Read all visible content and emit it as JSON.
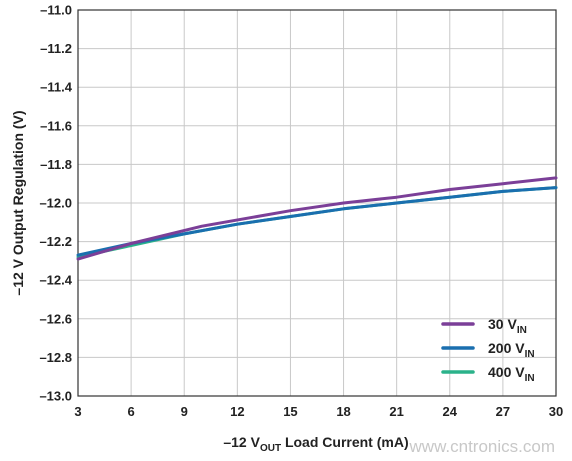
{
  "chart_data": {
    "type": "line",
    "title": "",
    "xlabel": "–12 VOUT Load Current (mA)",
    "xlabel_parts": {
      "main": "–12 V",
      "sub": "OUT",
      "rest": " Load Current (mA)"
    },
    "ylabel": "–12 V Output Regulation (V)",
    "xlim": [
      3,
      30
    ],
    "ylim": [
      -13.0,
      -11.0
    ],
    "x_ticks": [
      3,
      6,
      9,
      12,
      15,
      18,
      21,
      24,
      27,
      30
    ],
    "y_ticks": [
      -11.0,
      -11.2,
      -11.4,
      -11.6,
      -11.8,
      -12.0,
      -12.2,
      -12.4,
      -12.6,
      -12.8,
      -13.0
    ],
    "y_tick_labels": [
      "–11.0",
      "–11.2",
      "–11.4",
      "–11.6",
      "–11.8",
      "–12.0",
      "–12.2",
      "–12.4",
      "–12.6",
      "–12.8",
      "–13.0"
    ],
    "x_tick_labels": [
      "3",
      "6",
      "9",
      "12",
      "15",
      "18",
      "21",
      "24",
      "27",
      "30"
    ],
    "grid": true,
    "legend_position": "bottom-right",
    "series": [
      {
        "name": "30 VIN",
        "label_main": "30 V",
        "label_sub": "IN",
        "color": "#7b3f98",
        "x": [
          3,
          6,
          10,
          15,
          18,
          21,
          24,
          27,
          30
        ],
        "y": [
          -12.29,
          -12.21,
          -12.12,
          -12.04,
          -12.0,
          -11.97,
          -11.93,
          -11.9,
          -11.87
        ]
      },
      {
        "name": "200 VIN",
        "label_main": "200 V",
        "label_sub": "IN",
        "color": "#1a6faf",
        "x": [
          3,
          6,
          9,
          12,
          15,
          18,
          21,
          24,
          27,
          30
        ],
        "y": [
          -12.27,
          -12.21,
          -12.16,
          -12.11,
          -12.07,
          -12.03,
          -12.0,
          -11.97,
          -11.94,
          -11.92
        ]
      },
      {
        "name": "400 VIN",
        "label_main": "400 V",
        "label_sub": "IN",
        "color": "#2bb28a",
        "x": [
          3,
          6,
          9,
          12,
          15,
          18,
          21,
          24,
          27,
          30
        ],
        "y": [
          -12.28,
          -12.22,
          -12.16,
          -12.11,
          -12.07,
          -12.03,
          -12.0,
          -11.97,
          -11.94,
          -11.92
        ]
      }
    ]
  },
  "watermark": "www.cntronics.com"
}
